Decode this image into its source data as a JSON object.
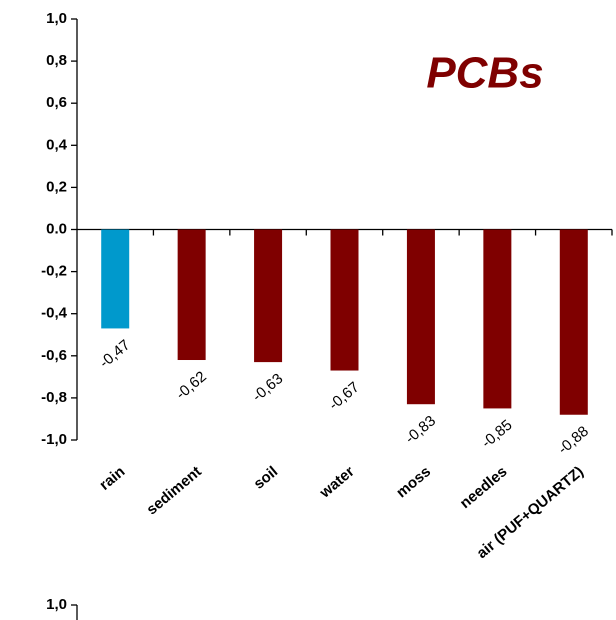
{
  "chart_data": [
    {
      "type": "bar",
      "title": "PCBs",
      "categories": [
        "rain",
        "sediment",
        "soil",
        "water",
        "moss",
        "needles",
        "air (PUF+QUARTZ)"
      ],
      "values": [
        -0.47,
        -0.62,
        -0.63,
        -0.67,
        -0.83,
        -0.85,
        -0.88
      ],
      "value_labels": [
        "-0,47",
        "-0,62",
        "-0,63",
        "-0,67",
        "-0,83",
        "-0,85",
        "-0,88"
      ],
      "colors": [
        "#0099cc",
        "#7f0000",
        "#7f0000",
        "#7f0000",
        "#7f0000",
        "#7f0000",
        "#7f0000"
      ],
      "ylim": [
        -1,
        1
      ],
      "yticks": [
        {
          "value": 1,
          "label": "1,0"
        },
        {
          "value": 0.8,
          "label": "0,8"
        },
        {
          "value": 0.6,
          "label": "0,6"
        },
        {
          "value": 0.4,
          "label": "0,4"
        },
        {
          "value": 0.2,
          "label": "0,2"
        },
        {
          "value": 0,
          "label": "0.0"
        },
        {
          "value": -0.2,
          "label": "-0,2"
        },
        {
          "value": -0.4,
          "label": "-0,4"
        },
        {
          "value": -0.6,
          "label": "-0,6"
        },
        {
          "value": -0.8,
          "label": "-0,8"
        },
        {
          "value": -1,
          "label": "-1,0"
        }
      ]
    },
    {
      "type": "bar",
      "yticks": [
        {
          "value": 1,
          "label": "1,0"
        }
      ]
    }
  ]
}
